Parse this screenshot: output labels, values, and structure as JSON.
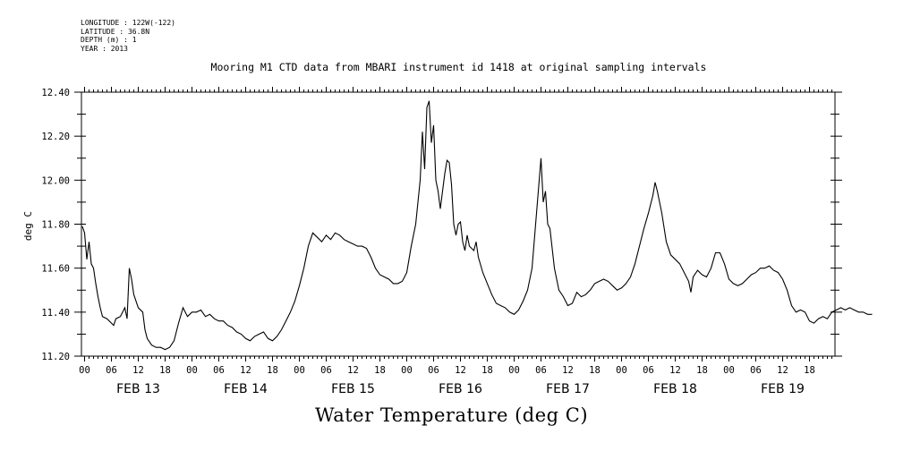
{
  "meta_lines": {
    "longitude": "LONGITUDE : 122W(-122)",
    "latitude": "LATITUDE : 36.8N",
    "depth": "DEPTH (m) : 1",
    "year": "YEAR : 2013"
  },
  "chart_data": {
    "type": "line",
    "title": "Mooring M1 CTD data from MBARI instrument id 1418 at original sampling intervals",
    "xlabel": "Water Temperature (deg C)",
    "ylabel": "deg C",
    "xunit": "hours since 2013-02-13 00:00",
    "xlim": [
      0,
      168
    ],
    "ylim": [
      11.2,
      12.4
    ],
    "yticks": [
      "11.20",
      "11.40",
      "11.60",
      "11.80",
      "12.00",
      "12.20",
      "12.40"
    ],
    "hour_ticks": [
      "00",
      "06",
      "12",
      "18"
    ],
    "days": [
      "FEB 13",
      "FEB 14",
      "FEB 15",
      "FEB 16",
      "FEB 17",
      "FEB 18",
      "FEB 19"
    ],
    "grid": false,
    "series": [
      {
        "values": [
          [
            -0.5,
            11.79
          ],
          [
            0,
            11.76
          ],
          [
            0.5,
            11.64
          ],
          [
            1,
            11.72
          ],
          [
            1.5,
            11.62
          ],
          [
            2,
            11.6
          ],
          [
            2.5,
            11.53
          ],
          [
            3,
            11.47
          ],
          [
            3.5,
            11.42
          ],
          [
            4,
            11.38
          ],
          [
            5,
            11.37
          ],
          [
            6,
            11.35
          ],
          [
            6.5,
            11.34
          ],
          [
            7,
            11.37
          ],
          [
            8,
            11.38
          ],
          [
            9,
            11.42
          ],
          [
            9.5,
            11.37
          ],
          [
            10,
            11.6
          ],
          [
            10.5,
            11.55
          ],
          [
            11,
            11.48
          ],
          [
            12,
            11.42
          ],
          [
            13,
            11.4
          ],
          [
            13.5,
            11.32
          ],
          [
            14,
            11.28
          ],
          [
            15,
            11.25
          ],
          [
            16,
            11.24
          ],
          [
            17,
            11.24
          ],
          [
            18,
            11.23
          ],
          [
            19,
            11.24
          ],
          [
            20,
            11.27
          ],
          [
            21,
            11.35
          ],
          [
            22,
            11.42
          ],
          [
            23,
            11.38
          ],
          [
            24,
            11.4
          ],
          [
            25,
            11.4
          ],
          [
            26,
            11.41
          ],
          [
            27,
            11.38
          ],
          [
            28,
            11.39
          ],
          [
            29,
            11.37
          ],
          [
            30,
            11.36
          ],
          [
            31,
            11.36
          ],
          [
            32,
            11.34
          ],
          [
            33,
            11.33
          ],
          [
            34,
            11.31
          ],
          [
            35,
            11.3
          ],
          [
            36,
            11.28
          ],
          [
            37,
            11.27
          ],
          [
            38,
            11.29
          ],
          [
            39,
            11.3
          ],
          [
            40,
            11.31
          ],
          [
            41,
            11.28
          ],
          [
            42,
            11.27
          ],
          [
            43,
            11.29
          ],
          [
            44,
            11.32
          ],
          [
            45,
            11.36
          ],
          [
            46,
            11.4
          ],
          [
            47,
            11.45
          ],
          [
            48,
            11.52
          ],
          [
            49,
            11.6
          ],
          [
            50,
            11.7
          ],
          [
            51,
            11.76
          ],
          [
            52,
            11.74
          ],
          [
            53,
            11.72
          ],
          [
            54,
            11.75
          ],
          [
            55,
            11.73
          ],
          [
            56,
            11.76
          ],
          [
            57,
            11.75
          ],
          [
            58,
            11.73
          ],
          [
            59,
            11.72
          ],
          [
            60,
            11.71
          ],
          [
            61,
            11.7
          ],
          [
            62,
            11.7
          ],
          [
            63,
            11.69
          ],
          [
            64,
            11.65
          ],
          [
            65,
            11.6
          ],
          [
            66,
            11.57
          ],
          [
            67,
            11.56
          ],
          [
            68,
            11.55
          ],
          [
            69,
            11.53
          ],
          [
            70,
            11.53
          ],
          [
            71,
            11.54
          ],
          [
            72,
            11.58
          ],
          [
            73,
            11.7
          ],
          [
            74,
            11.8
          ],
          [
            75,
            12.0
          ],
          [
            75.5,
            12.22
          ],
          [
            76,
            12.05
          ],
          [
            76.5,
            12.33
          ],
          [
            77,
            12.36
          ],
          [
            77.5,
            12.17
          ],
          [
            78,
            12.25
          ],
          [
            78.5,
            12.0
          ],
          [
            79,
            11.95
          ],
          [
            79.5,
            11.87
          ],
          [
            80,
            11.95
          ],
          [
            80.5,
            12.03
          ],
          [
            81,
            12.09
          ],
          [
            81.5,
            12.08
          ],
          [
            82,
            11.98
          ],
          [
            82.5,
            11.8
          ],
          [
            83,
            11.75
          ],
          [
            83.5,
            11.8
          ],
          [
            84,
            11.81
          ],
          [
            84.5,
            11.72
          ],
          [
            85,
            11.68
          ],
          [
            85.5,
            11.75
          ],
          [
            86,
            11.7
          ],
          [
            87,
            11.68
          ],
          [
            87.5,
            11.72
          ],
          [
            88,
            11.65
          ],
          [
            89,
            11.58
          ],
          [
            90,
            11.53
          ],
          [
            91,
            11.48
          ],
          [
            92,
            11.44
          ],
          [
            93,
            11.43
          ],
          [
            94,
            11.42
          ],
          [
            95,
            11.4
          ],
          [
            96,
            11.39
          ],
          [
            97,
            11.41
          ],
          [
            98,
            11.45
          ],
          [
            99,
            11.5
          ],
          [
            100,
            11.6
          ],
          [
            101,
            11.85
          ],
          [
            102,
            12.1
          ],
          [
            102.5,
            11.9
          ],
          [
            103,
            11.95
          ],
          [
            103.5,
            11.8
          ],
          [
            104,
            11.78
          ],
          [
            105,
            11.6
          ],
          [
            106,
            11.5
          ],
          [
            107,
            11.47
          ],
          [
            108,
            11.43
          ],
          [
            109,
            11.44
          ],
          [
            110,
            11.49
          ],
          [
            111,
            11.47
          ],
          [
            112,
            11.48
          ],
          [
            113,
            11.5
          ],
          [
            114,
            11.53
          ],
          [
            115,
            11.54
          ],
          [
            116,
            11.55
          ],
          [
            117,
            11.54
          ],
          [
            118,
            11.52
          ],
          [
            119,
            11.5
          ],
          [
            120,
            11.51
          ],
          [
            121,
            11.53
          ],
          [
            122,
            11.56
          ],
          [
            123,
            11.62
          ],
          [
            124,
            11.7
          ],
          [
            125,
            11.78
          ],
          [
            126,
            11.85
          ],
          [
            127,
            11.93
          ],
          [
            127.5,
            11.99
          ],
          [
            128,
            11.95
          ],
          [
            129,
            11.85
          ],
          [
            130,
            11.72
          ],
          [
            131,
            11.66
          ],
          [
            132,
            11.64
          ],
          [
            133,
            11.62
          ],
          [
            134,
            11.58
          ],
          [
            135,
            11.54
          ],
          [
            135.5,
            11.49
          ],
          [
            136,
            11.56
          ],
          [
            137,
            11.59
          ],
          [
            138,
            11.57
          ],
          [
            139,
            11.56
          ],
          [
            140,
            11.6
          ],
          [
            141,
            11.67
          ],
          [
            142,
            11.67
          ],
          [
            143,
            11.62
          ],
          [
            144,
            11.55
          ],
          [
            145,
            11.53
          ],
          [
            146,
            11.52
          ],
          [
            147,
            11.53
          ],
          [
            148,
            11.55
          ],
          [
            149,
            11.57
          ],
          [
            150,
            11.58
          ],
          [
            151,
            11.6
          ],
          [
            152,
            11.6
          ],
          [
            153,
            11.61
          ],
          [
            154,
            11.59
          ],
          [
            155,
            11.58
          ],
          [
            156,
            11.55
          ],
          [
            157,
            11.5
          ],
          [
            158,
            11.43
          ],
          [
            159,
            11.4
          ],
          [
            160,
            11.41
          ],
          [
            161,
            11.4
          ],
          [
            162,
            11.36
          ],
          [
            163,
            11.35
          ],
          [
            164,
            11.37
          ],
          [
            165,
            11.38
          ],
          [
            166,
            11.37
          ],
          [
            167,
            11.4
          ],
          [
            168,
            11.41
          ],
          [
            169,
            11.42
          ],
          [
            170,
            11.41
          ],
          [
            171,
            11.42
          ],
          [
            172,
            11.41
          ],
          [
            173,
            11.4
          ],
          [
            174,
            11.4
          ],
          [
            175,
            11.39
          ],
          [
            176,
            11.39
          ]
        ]
      }
    ]
  }
}
